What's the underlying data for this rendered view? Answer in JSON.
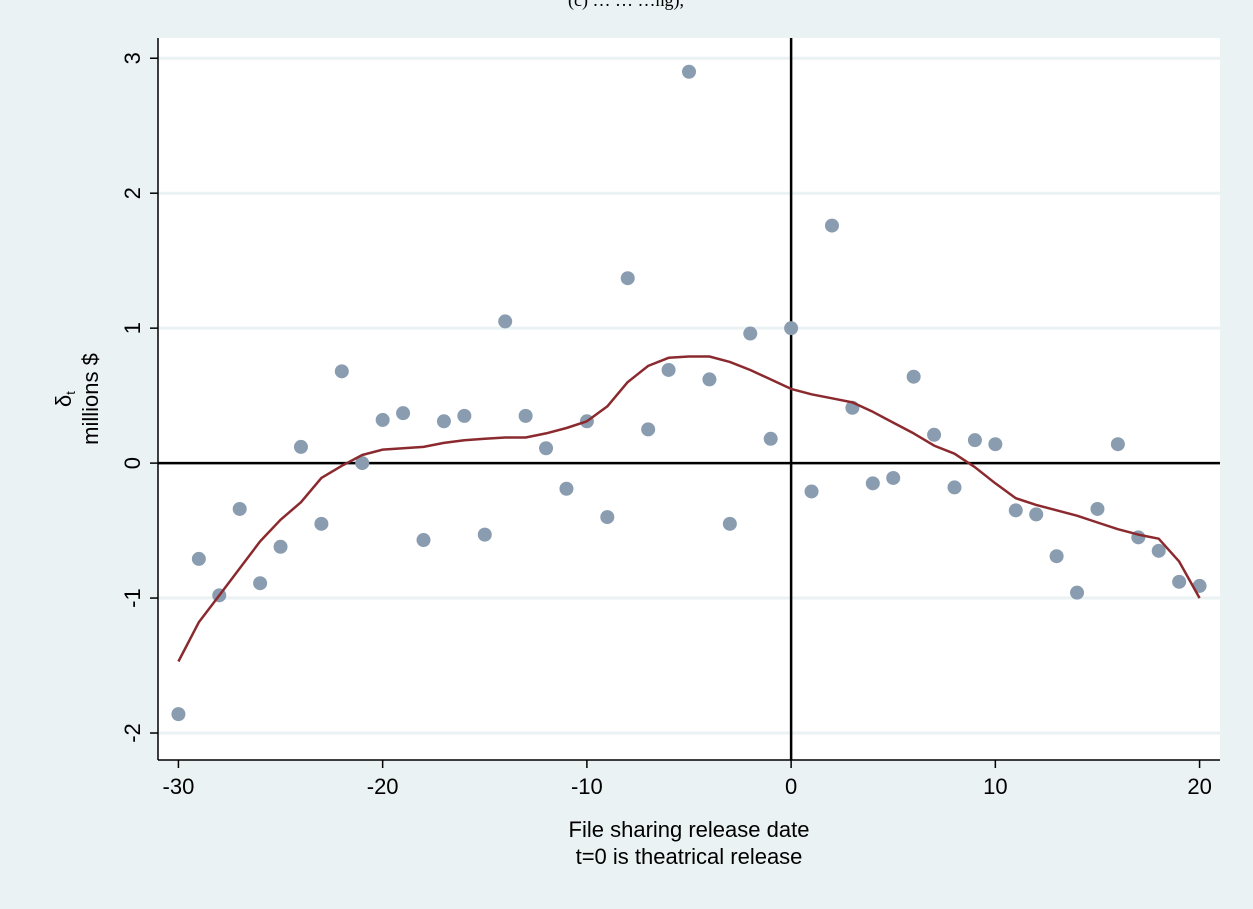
{
  "page": {
    "top_fragment": "(c) …  …  …ng),"
  },
  "colors": {
    "background": "#eaf2f3",
    "plot_background": "#ffffff",
    "gridline": "#eaf2f3",
    "points": "#8a9cb0",
    "fit_line": "#8b2a2e",
    "reference_lines": "#000000"
  },
  "chart_data": {
    "type": "scatter",
    "title": "",
    "xlabel": [
      "File sharing release date",
      "t=0 is theatrical release"
    ],
    "ylabel": [
      "δ",
      "t",
      "millions $"
    ],
    "xlim": [
      -31,
      21
    ],
    "ylim": [
      -2.2,
      3.15
    ],
    "xticks": [
      -30,
      -20,
      -10,
      0,
      10,
      20
    ],
    "yticks": [
      -2,
      -1,
      0,
      1,
      2,
      3
    ],
    "grid": "horizontal",
    "reference_lines": {
      "x": 0,
      "y": 0
    },
    "series": [
      {
        "kind": "points",
        "x": [
          -30,
          -29,
          -28,
          -27,
          -26,
          -25,
          -24,
          -23,
          -22,
          -21,
          -20,
          -19,
          -18,
          -17,
          -16,
          -15,
          -14,
          -13,
          -12,
          -11,
          -10,
          -9,
          -8,
          -7,
          -6,
          -5,
          -4,
          -3,
          -2,
          -1,
          0,
          1,
          2,
          3,
          4,
          5,
          6,
          7,
          8,
          9,
          10,
          11,
          12,
          13,
          14,
          15,
          16,
          17,
          18,
          19,
          20
        ],
        "y": [
          -1.86,
          -0.71,
          -0.98,
          -0.34,
          -0.89,
          -0.62,
          0.12,
          -0.45,
          0.68,
          0.0,
          0.32,
          0.37,
          -0.57,
          0.31,
          0.35,
          -0.53,
          1.05,
          0.35,
          0.11,
          -0.19,
          0.31,
          -0.4,
          1.37,
          0.25,
          0.69,
          2.9,
          0.62,
          -0.45,
          0.96,
          0.18,
          1.0,
          -0.21,
          1.76,
          0.41,
          -0.15,
          -0.11,
          0.64,
          0.21,
          -0.18,
          0.17,
          0.14,
          -0.35,
          -0.38,
          -0.69,
          -0.96,
          -0.34,
          0.14,
          -0.55,
          -0.65,
          -0.88,
          -0.91
        ]
      },
      {
        "kind": "line",
        "x": [
          -30,
          -29,
          -28,
          -27,
          -26,
          -25,
          -24,
          -23,
          -22,
          -21,
          -20,
          -19,
          -18,
          -17,
          -16,
          -15,
          -14,
          -13,
          -12,
          -11,
          -10,
          -9,
          -8,
          -7,
          -6,
          -5,
          -4,
          -3,
          -2,
          -1,
          0,
          1,
          2,
          3,
          4,
          5,
          6,
          7,
          8,
          9,
          10,
          11,
          12,
          13,
          14,
          15,
          16,
          17,
          18,
          19,
          20
        ],
        "y": [
          -1.47,
          -1.18,
          -0.98,
          -0.78,
          -0.58,
          -0.42,
          -0.29,
          -0.11,
          -0.02,
          0.06,
          0.1,
          0.11,
          0.12,
          0.15,
          0.17,
          0.18,
          0.19,
          0.19,
          0.22,
          0.26,
          0.31,
          0.42,
          0.6,
          0.72,
          0.78,
          0.79,
          0.79,
          0.75,
          0.69,
          0.62,
          0.55,
          0.51,
          0.48,
          0.45,
          0.38,
          0.3,
          0.22,
          0.13,
          0.07,
          -0.03,
          -0.15,
          -0.26,
          -0.31,
          -0.35,
          -0.39,
          -0.44,
          -0.49,
          -0.53,
          -0.56,
          -0.73,
          -1.0
        ]
      }
    ]
  }
}
